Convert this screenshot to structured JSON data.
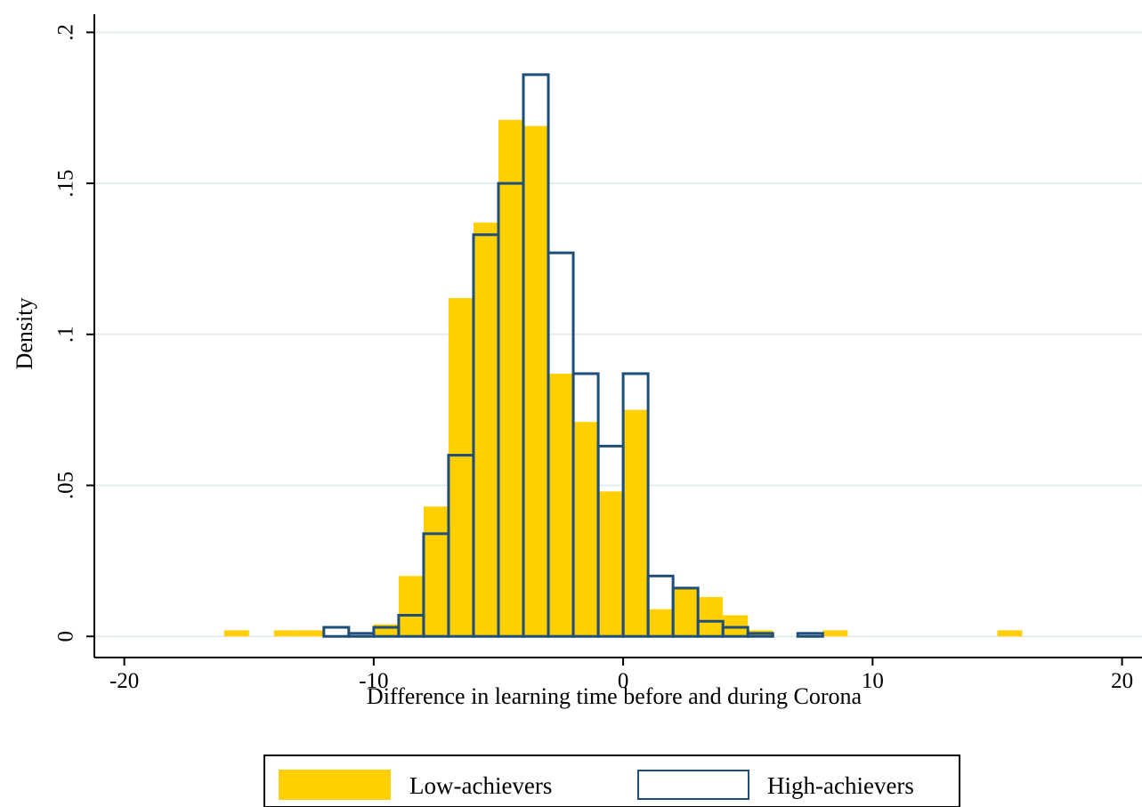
{
  "chart_data": {
    "type": "bar",
    "xlabel": "Difference in learning time before and during Corona",
    "ylabel": "Density",
    "xlim": [
      -21.2,
      20.8
    ],
    "ylim": [
      -0.007,
      0.206
    ],
    "x_ticks": [
      {
        "value": -20,
        "label": "-20"
      },
      {
        "value": -10,
        "label": "-10"
      },
      {
        "value": 0,
        "label": "0"
      },
      {
        "value": 10,
        "label": "10"
      },
      {
        "value": 20,
        "label": "20"
      }
    ],
    "y_ticks": [
      {
        "value": 0,
        "label": "0"
      },
      {
        "value": 0.05,
        "label": ".05"
      },
      {
        "value": 0.1,
        "label": ".1"
      },
      {
        "value": 0.15,
        "label": ".15"
      },
      {
        "value": 0.2,
        "label": ".2"
      }
    ],
    "grid": true,
    "legend_position": "bottom",
    "series": [
      {
        "name": "Low-achievers",
        "style": "filled",
        "color": "#FFCF00",
        "bin_width": 1,
        "bins": [
          {
            "x": -16,
            "y": 0.002
          },
          {
            "x": -14,
            "y": 0.002
          },
          {
            "x": -13,
            "y": 0.002
          },
          {
            "x": -10,
            "y": 0.004
          },
          {
            "x": -9,
            "y": 0.02
          },
          {
            "x": -8,
            "y": 0.043
          },
          {
            "x": -7,
            "y": 0.112
          },
          {
            "x": -6,
            "y": 0.137
          },
          {
            "x": -5,
            "y": 0.171
          },
          {
            "x": -4,
            "y": 0.169
          },
          {
            "x": -3,
            "y": 0.087
          },
          {
            "x": -2,
            "y": 0.071
          },
          {
            "x": -1,
            "y": 0.048
          },
          {
            "x": 0,
            "y": 0.075
          },
          {
            "x": 1,
            "y": 0.009
          },
          {
            "x": 2,
            "y": 0.016
          },
          {
            "x": 3,
            "y": 0.013
          },
          {
            "x": 4,
            "y": 0.007
          },
          {
            "x": 5,
            "y": 0.002
          },
          {
            "x": 8,
            "y": 0.002
          },
          {
            "x": 15,
            "y": 0.002
          }
        ]
      },
      {
        "name": "High-achievers",
        "style": "outline",
        "color": "#1F4E79",
        "bin_width": 1,
        "bins": [
          {
            "x": -12,
            "y": 0.003
          },
          {
            "x": -11,
            "y": 0.001
          },
          {
            "x": -10,
            "y": 0.003
          },
          {
            "x": -9,
            "y": 0.007
          },
          {
            "x": -8,
            "y": 0.034
          },
          {
            "x": -7,
            "y": 0.06
          },
          {
            "x": -6,
            "y": 0.133
          },
          {
            "x": -5,
            "y": 0.15
          },
          {
            "x": -4,
            "y": 0.186
          },
          {
            "x": -3,
            "y": 0.127
          },
          {
            "x": -2,
            "y": 0.087
          },
          {
            "x": -1,
            "y": 0.063
          },
          {
            "x": 0,
            "y": 0.087
          },
          {
            "x": 1,
            "y": 0.02
          },
          {
            "x": 2,
            "y": 0.016
          },
          {
            "x": 3,
            "y": 0.005
          },
          {
            "x": 4,
            "y": 0.003
          },
          {
            "x": 5,
            "y": 0.001
          },
          {
            "x": 7,
            "y": 0.001
          }
        ]
      }
    ]
  }
}
